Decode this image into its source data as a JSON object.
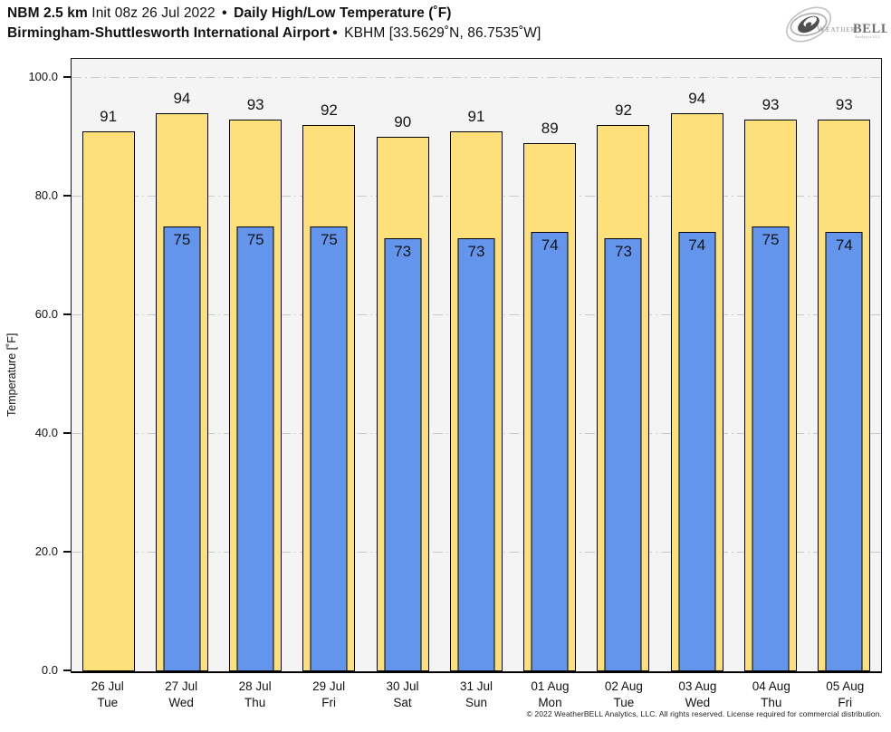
{
  "header": {
    "title_model": "NBM 2.5 km",
    "title_init": " Init 08z 26 Jul 2022 ",
    "title_sep": "•",
    "title_product": " Daily High/Low Temperature (˚F)",
    "subtitle_station": "Birmingham-Shuttlesworth International Airport",
    "subtitle_sep": "•",
    "subtitle_id": " KBHM [33.5629˚N, 86.7535˚W]"
  },
  "logo": {
    "weather": "Weather",
    "bell": "BELL",
    "sub": "Analytics LLC"
  },
  "chart_data": {
    "type": "bar",
    "title": "NBM 2.5 km Init 08z 26 Jul 2022 • Daily High/Low Temperature (˚F)",
    "subtitle": "Birmingham-Shuttlesworth International Airport • KBHM [33.5629˚N, 86.7535˚W]",
    "categories": [
      "26 Jul",
      "27 Jul",
      "28 Jul",
      "29 Jul",
      "30 Jul",
      "31 Jul",
      "01 Aug",
      "02 Aug",
      "03 Aug",
      "04 Aug",
      "05 Aug"
    ],
    "weekdays": [
      "Tue",
      "Wed",
      "Thu",
      "Fri",
      "Sat",
      "Sun",
      "Mon",
      "Tue",
      "Wed",
      "Thu",
      "Fri"
    ],
    "series": [
      {
        "name": "Daily High",
        "color": "#fde07a",
        "values": [
          91,
          94,
          93,
          92,
          90,
          91,
          89,
          92,
          94,
          93,
          93
        ]
      },
      {
        "name": "Daily Low",
        "color": "#6495ed",
        "values": [
          null,
          75,
          75,
          75,
          73,
          73,
          74,
          73,
          74,
          75,
          74
        ]
      }
    ],
    "xlabel": "",
    "ylabel": "Temperature [˚F]",
    "yticks": [
      0,
      20,
      40,
      60,
      80,
      100
    ],
    "ytick_labels": [
      "0.0",
      "20.0",
      "40.0",
      "60.0",
      "80.0",
      "100.0"
    ],
    "ylim": [
      0,
      103.2
    ],
    "grid": "horizontal dash-dot",
    "legend": "none",
    "plot_bg": "#f4f4f4",
    "gridline_color": "#c9c9c9"
  },
  "footer": {
    "copyright": "© 2022 WeatherBELL Analytics, LLC. All rights reserved. License required for commercial distribution."
  }
}
